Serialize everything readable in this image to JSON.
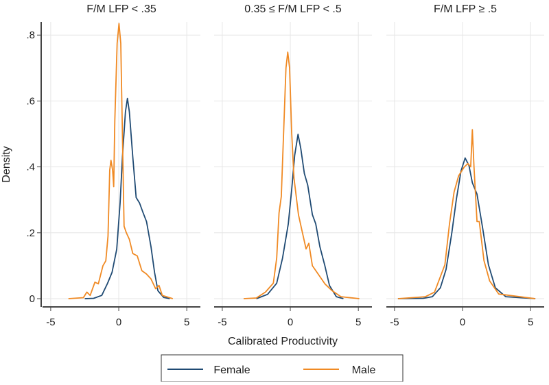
{
  "chart_data": {
    "type": "line",
    "ylabel": "Density",
    "xlabel": "Calibrated Productivity",
    "xlim": [
      -5.6,
      6.0
    ],
    "ylim": [
      -0.025,
      0.84
    ],
    "xticks": [
      -5,
      0,
      5
    ],
    "xtick_labels": [
      "-5",
      "0",
      "5"
    ],
    "yticks": [
      0,
      0.2,
      0.4,
      0.6,
      0.8
    ],
    "ytick_labels": [
      "0",
      ".2",
      ".4",
      ".6",
      ".8"
    ],
    "grid": true,
    "legend": {
      "placement": "bottom",
      "entries": [
        "Female",
        "Male"
      ]
    },
    "colors": {
      "Female": "#1f4a73",
      "Male": "#f08a24"
    },
    "panels": [
      {
        "title": "F/M LFP < .35",
        "series": [
          {
            "name": "Female",
            "x": [
              -2.5,
              -1.85,
              -1.25,
              -0.82,
              -0.49,
              -0.15,
              0.1,
              0.27,
              0.49,
              0.64,
              0.78,
              1.03,
              1.28,
              1.53,
              1.78,
              2.04,
              2.37,
              2.63,
              2.88,
              3.3,
              3.75
            ],
            "y": [
              0,
              0.001,
              0.01,
              0.047,
              0.08,
              0.15,
              0.29,
              0.43,
              0.567,
              0.608,
              0.567,
              0.43,
              0.307,
              0.29,
              0.262,
              0.234,
              0.158,
              0.08,
              0.024,
              0.004,
              0
            ]
          },
          {
            "name": "Male",
            "x": [
              -3.7,
              -2.6,
              -2.34,
              -2.1,
              -1.75,
              -1.5,
              -1.16,
              -0.95,
              -0.79,
              -0.66,
              -0.57,
              -0.45,
              -0.37,
              -0.29,
              -0.12,
              0.02,
              0.15,
              0.27,
              0.39,
              0.56,
              0.78,
              1.03,
              1.36,
              1.7,
              2.03,
              2.37,
              2.71,
              2.96,
              3.2,
              3.97
            ],
            "y": [
              0,
              0.003,
              0.02,
              0.01,
              0.05,
              0.045,
              0.1,
              0.115,
              0.19,
              0.39,
              0.42,
              0.39,
              0.34,
              0.54,
              0.775,
              0.835,
              0.775,
              0.497,
              0.22,
              0.2,
              0.18,
              0.137,
              0.13,
              0.085,
              0.075,
              0.06,
              0.03,
              0.04,
              0.01,
              0
            ]
          }
        ]
      },
      {
        "title": "0.35 ≤ F/M LFP < .5",
        "series": [
          {
            "name": "Female",
            "x": [
              -2.5,
              -1.67,
              -1.0,
              -0.57,
              -0.15,
              0.1,
              0.32,
              0.57,
              0.77,
              1.03,
              1.28,
              1.62,
              1.87,
              2.17,
              2.54,
              2.88,
              3.38,
              3.9
            ],
            "y": [
              0,
              0.013,
              0.047,
              0.123,
              0.227,
              0.33,
              0.435,
              0.499,
              0.456,
              0.38,
              0.345,
              0.255,
              0.227,
              0.158,
              0.1,
              0.04,
              0.006,
              0
            ]
          },
          {
            "name": "Male",
            "x": [
              -3.43,
              -2.5,
              -1.83,
              -1.25,
              -1.0,
              -0.83,
              -0.66,
              -0.49,
              -0.32,
              -0.19,
              -0.05,
              0.1,
              0.27,
              0.6,
              0.86,
              1.16,
              1.36,
              1.62,
              2.04,
              2.54,
              3.05,
              3.72,
              5.07
            ],
            "y": [
              0,
              0.002,
              0.02,
              0.047,
              0.123,
              0.26,
              0.31,
              0.505,
              0.7,
              0.748,
              0.7,
              0.505,
              0.366,
              0.255,
              0.206,
              0.151,
              0.168,
              0.1,
              0.075,
              0.045,
              0.025,
              0.006,
              0
            ]
          }
        ]
      },
      {
        "title": "F/M LFP ≥ .5",
        "series": [
          {
            "name": "Female",
            "x": [
              -4.75,
              -2.9,
              -2.22,
              -1.63,
              -1.21,
              -0.79,
              -0.45,
              -0.12,
              0.19,
              0.47,
              0.72,
              1.06,
              1.48,
              1.9,
              2.41,
              3.17,
              5.35
            ],
            "y": [
              0,
              0.001,
              0.006,
              0.033,
              0.089,
              0.2,
              0.303,
              0.387,
              0.427,
              0.404,
              0.352,
              0.317,
              0.213,
              0.103,
              0.033,
              0.006,
              0
            ]
          },
          {
            "name": "Male",
            "x": [
              -4.75,
              -2.73,
              -2.06,
              -1.3,
              -0.96,
              -0.62,
              -0.29,
              0.13,
              0.39,
              0.6,
              0.72,
              0.84,
              1.06,
              1.23,
              1.57,
              1.99,
              2.66,
              5.35
            ],
            "y": [
              0,
              0.006,
              0.02,
              0.103,
              0.227,
              0.324,
              0.373,
              0.4,
              0.41,
              0.4,
              0.513,
              0.4,
              0.234,
              0.234,
              0.116,
              0.054,
              0.014,
              0
            ]
          }
        ]
      }
    ]
  }
}
